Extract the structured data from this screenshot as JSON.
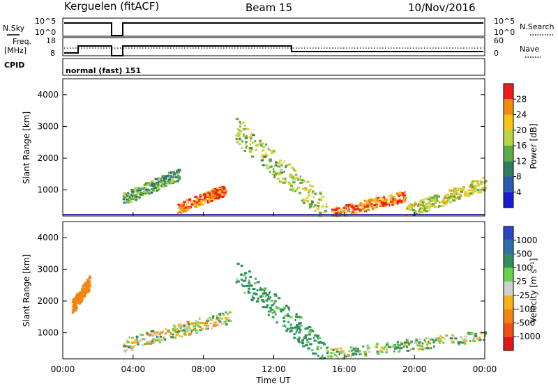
{
  "header": {
    "station": "Kerguelen (fitACF)",
    "beam": "Beam 15",
    "date": "10/Nov/2016"
  },
  "panel_labels": {
    "nsky": "N.Sky",
    "nsearch": "N.Search",
    "freq_line1": "Freq.",
    "freq_line2": "[MHz]",
    "nave": "Nave",
    "cpid": "CPID",
    "cpid_value": "normal (fast) 151"
  },
  "noise_axis": {
    "left_ticks": [
      "10^5",
      "10^0"
    ],
    "right_ticks": [
      "10^5",
      "10^0"
    ]
  },
  "freq_axis": {
    "left_ticks": [
      "18",
      "8"
    ],
    "right_ticks": [
      "60",
      "0"
    ]
  },
  "colors": {
    "power": "#ee1c1c",
    "velocity_low": "#d0d0d0",
    "velocity_high": "#2b64b5",
    "ground": "#3a3aa0"
  },
  "chart_data": [
    {
      "type": "heatmap",
      "title": "",
      "xlabel": "Time UT",
      "ylabel": "Slant Range [km]",
      "xticks": [
        "00:00",
        "04:00",
        "08:00",
        "12:00",
        "16:00",
        "20:00",
        "00:00"
      ],
      "xlim_hours": [
        0,
        24
      ],
      "yticks": [
        "1000",
        "2000",
        "3000",
        "4000"
      ],
      "ylim": [
        180,
        4500
      ],
      "colorbar": {
        "label": "Power [dB]",
        "ticks": [
          "4",
          "8",
          "12",
          "16",
          "20",
          "24",
          "28"
        ],
        "range": [
          0,
          30
        ],
        "colors": [
          "#1b1bd4",
          "#2b59b4",
          "#2f7f5d",
          "#5cab4a",
          "#b7d641",
          "#f6c518",
          "#f48a12",
          "#ee1c1c"
        ]
      },
      "data_gap_hours": [
        2.9,
        3.3
      ],
      "features": [
        {
          "start_h": 6.5,
          "end_h": 9.2,
          "range_km": [
            400,
            1000
          ],
          "power": 26
        },
        {
          "start_h": 3.4,
          "end_h": 6.6,
          "range_km": [
            700,
            1500
          ],
          "power": 12
        },
        {
          "start_h": 9.8,
          "end_h": 15.0,
          "range_km": [
            2900,
            300
          ],
          "power": 16
        },
        {
          "start_h": 15.2,
          "end_h": 19.5,
          "range_km": [
            250,
            800
          ],
          "power": 26
        },
        {
          "start_h": 19.5,
          "end_h": 24.0,
          "range_km": [
            300,
            1200
          ],
          "power": 18
        }
      ]
    },
    {
      "type": "heatmap",
      "title": "",
      "xlabel": "Time UT",
      "ylabel": "Slant Range [km]",
      "xticks": [
        "00:00",
        "04:00",
        "08:00",
        "12:00",
        "16:00",
        "20:00",
        "00:00"
      ],
      "xlim_hours": [
        0,
        24
      ],
      "yticks": [
        "1000",
        "2000",
        "3000",
        "4000"
      ],
      "ylim": [
        180,
        4500
      ],
      "colorbar": {
        "label": "Velocity [m s⁻¹]",
        "ticks": [
          "1000",
          "500",
          "100",
          "25",
          "-25",
          "-100",
          "-500",
          "-1000"
        ],
        "colors": [
          "#2b45c8",
          "#2f6fa8",
          "#2f8f5f",
          "#6ad24d",
          "#cfcfcf",
          "#f6b21a",
          "#f38412",
          "#f2501a",
          "#e01818"
        ]
      },
      "data_gap_hours": [
        2.9,
        3.3
      ],
      "features": [
        {
          "start_h": 3.4,
          "end_h": 9.5,
          "range_km": [
            600,
            1500
          ],
          "velocity": 0
        },
        {
          "start_h": 9.8,
          "end_h": 15.0,
          "range_km": [
            2900,
            300
          ],
          "velocity": 200
        },
        {
          "start_h": 0.5,
          "end_h": 1.5,
          "range_km": [
            1800,
            2600
          ],
          "velocity": -300
        },
        {
          "start_h": 15.0,
          "end_h": 24.0,
          "range_km": [
            300,
            900
          ],
          "velocity": 50
        }
      ]
    }
  ]
}
